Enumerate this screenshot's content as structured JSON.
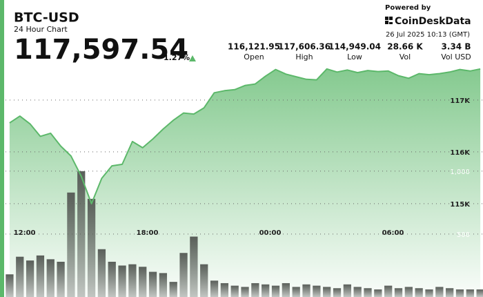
{
  "header": {
    "symbol": "BTC-USD",
    "subtitle": "24 Hour Chart",
    "price": "117,597.54",
    "change": "1.27%",
    "powered_by": "Powered by",
    "brand": "CoinDeskData",
    "timestamp": "26 Jul 2025 10:13 (GMT)",
    "stats": [
      {
        "value": "116,121.95",
        "label": "Open"
      },
      {
        "value": "117,606.36",
        "label": "High"
      },
      {
        "value": "114,949.04",
        "label": "Low"
      },
      {
        "value": "28.66 K",
        "label": "Vol"
      },
      {
        "value": "3.34 B",
        "label": "Vol USD"
      }
    ]
  },
  "chart_data": {
    "type": "line",
    "x": [
      11,
      11.5,
      12,
      12.5,
      13,
      13.5,
      14,
      14.5,
      15,
      15.5,
      16,
      16.5,
      17,
      17.5,
      18,
      18.5,
      19,
      19.5,
      20,
      20.5,
      21,
      21.5,
      22,
      22.5,
      23,
      23.5,
      24,
      24.5,
      25,
      25.5,
      26,
      26.5,
      27,
      27.5,
      28,
      28.5,
      29,
      29.5,
      30,
      30.5,
      31,
      31.5,
      32,
      32.5,
      33,
      33.5,
      34
    ],
    "xlim": [
      10.8,
      34.13
    ],
    "xticks": [
      {
        "value": 12,
        "label": "12:00"
      },
      {
        "value": 18,
        "label": "18:00"
      },
      {
        "value": 24,
        "label": "00:00"
      },
      {
        "value": 30,
        "label": "06:00"
      }
    ],
    "ylim": [
      113200,
      118930
    ],
    "yticks": [
      {
        "value": 115000,
        "label": "115K"
      },
      {
        "value": 116000,
        "label": "116K"
      },
      {
        "value": 117000,
        "label": "117K"
      }
    ],
    "y2lim": [
      0,
      2360
    ],
    "y2ticks": [
      500,
      {
        "value": 1000,
        "label": "1,000"
      }
    ],
    "grid": true,
    "series": [
      {
        "type": "area",
        "color": "#5cb86a",
        "values": [
          116560,
          116690,
          116540,
          116300,
          116360,
          116110,
          115920,
          115530,
          115000,
          115490,
          115730,
          115760,
          116200,
          116080,
          116250,
          116440,
          116610,
          116750,
          116730,
          116850,
          117140,
          117180,
          117200,
          117280,
          117310,
          117460,
          117590,
          117500,
          117450,
          117400,
          117390,
          117600,
          117540,
          117580,
          117530,
          117570,
          117550,
          117560,
          117470,
          117420,
          117510,
          117490,
          117510,
          117540,
          117590,
          117560,
          117600
        ]
      },
      {
        "type": "bar",
        "axis": "y2",
        "color": "#5a5f5a",
        "values": [
          180,
          320,
          290,
          330,
          300,
          280,
          830,
          1000,
          780,
          380,
          280,
          250,
          260,
          240,
          200,
          190,
          120,
          350,
          480,
          260,
          130,
          110,
          90,
          80,
          110,
          100,
          90,
          110,
          80,
          100,
          90,
          80,
          70,
          100,
          80,
          70,
          60,
          90,
          70,
          80,
          70,
          60,
          80,
          70,
          60,
          60,
          60
        ]
      }
    ]
  }
}
